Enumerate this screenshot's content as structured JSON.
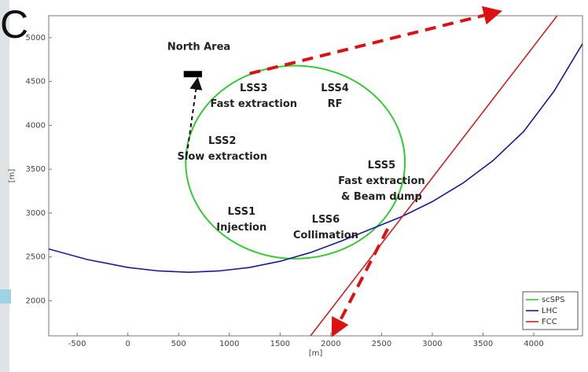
{
  "panel_letter": "C",
  "chart_data": {
    "type": "line",
    "xlabel": "[m]",
    "ylabel": "[m]",
    "xlim": [
      -780,
      4480
    ],
    "ylim": [
      1600,
      5250
    ],
    "xticks": [
      -500,
      0,
      500,
      1000,
      1500,
      2000,
      2500,
      3000,
      3500,
      4000
    ],
    "yticks": [
      2000,
      2500,
      3000,
      3500,
      4000,
      4500,
      5000
    ],
    "grid": false,
    "legend_position": "bottom-right",
    "series": [
      {
        "name": "scSPS",
        "color": "#33cc33",
        "shape": "ellipse",
        "center": [
          1650,
          3580
        ],
        "radius_x": 1080,
        "radius_y": 1100
      },
      {
        "name": "LHC",
        "color": "#1a1a99",
        "x": [
          -780,
          -400,
          0,
          300,
          600,
          900,
          1200,
          1500,
          1800,
          2100,
          2400,
          2700,
          3000,
          3300,
          3600,
          3900,
          4200,
          4480
        ],
        "y": [
          2590,
          2470,
          2380,
          2340,
          2325,
          2340,
          2380,
          2450,
          2550,
          2680,
          2820,
          2960,
          3130,
          3340,
          3600,
          3930,
          4390,
          4930
        ]
      },
      {
        "name": "FCC",
        "color": "#cc2222",
        "x": [
          1800,
          4230
        ],
        "y": [
          1600,
          5250
        ]
      }
    ],
    "annotations": [
      {
        "text": "North Area",
        "x": 700,
        "y": 4860
      },
      {
        "text": "LSS3",
        "x": 1240,
        "y": 4390
      },
      {
        "text": "Fast extraction",
        "x": 1240,
        "y": 4210
      },
      {
        "text": "LSS4",
        "x": 2040,
        "y": 4390
      },
      {
        "text": "RF",
        "x": 2040,
        "y": 4210
      },
      {
        "text": "LSS2",
        "x": 930,
        "y": 3790
      },
      {
        "text": "Slow extraction",
        "x": 930,
        "y": 3610
      },
      {
        "text": "LSS5",
        "x": 2500,
        "y": 3510
      },
      {
        "text": "Fast extraction",
        "x": 2500,
        "y": 3330
      },
      {
        "text": "& Beam dump",
        "x": 2500,
        "y": 3150
      },
      {
        "text": "LSS1",
        "x": 1120,
        "y": 2980
      },
      {
        "text": "Injection",
        "x": 1120,
        "y": 2800
      },
      {
        "text": "LSS6",
        "x": 1950,
        "y": 2890
      },
      {
        "text": "Collimation",
        "x": 1950,
        "y": 2710
      }
    ],
    "arrows": [
      {
        "style": "dashed-black",
        "from": [
          580,
          3660
        ],
        "to": [
          680,
          4480
        ]
      },
      {
        "style": "dashed-red",
        "from": [
          1200,
          4590
        ],
        "to": [
          3600,
          5280
        ]
      },
      {
        "style": "dashed-red",
        "from": [
          2560,
          2820
        ],
        "to": [
          2050,
          1680
        ]
      }
    ],
    "north_area_marker": {
      "x": [
        550,
        730
      ],
      "y": [
        4590,
        4620
      ]
    }
  }
}
